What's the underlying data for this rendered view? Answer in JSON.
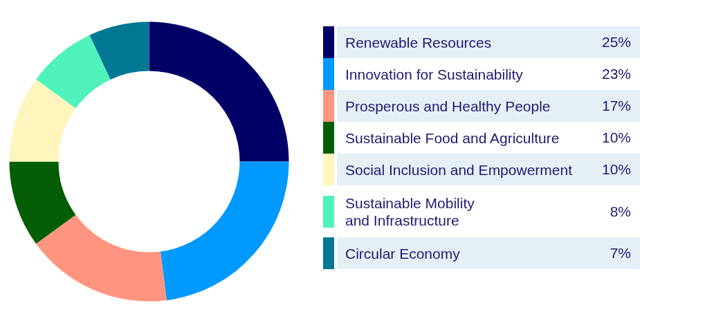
{
  "chart_data": {
    "type": "donut",
    "categories": [
      "Renewable Resources",
      "Innovation for Sustainability",
      "Prosperous and Healthy People",
      "Sustainable Food and Agriculture",
      "Social Inclusion and Empowerment",
      "Sustainable Mobility\nand Infrastructure",
      "Circular Economy"
    ],
    "values": [
      25,
      23,
      17,
      10,
      10,
      8,
      7
    ],
    "colors": [
      "#000066",
      "#0099ff",
      "#ff957e",
      "#055e05",
      "#fff5bd",
      "#50f2bc",
      "#007894"
    ],
    "value_labels": [
      "25%",
      "23%",
      "17%",
      "10%",
      "10%",
      "8%",
      "7%"
    ],
    "legend": "right"
  }
}
